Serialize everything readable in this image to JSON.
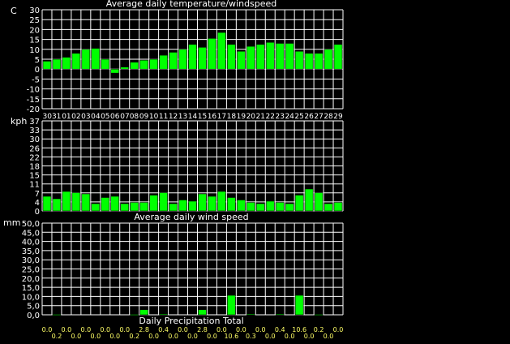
{
  "colors": {
    "background": "#000000",
    "bar_fill": "#00ff00",
    "bar_stroke": "#000000",
    "grid": "#ffffff",
    "frame": "#ffffff",
    "axis_text": "#ffffff",
    "value_text": "#ffff66",
    "date_text": "#ffff66"
  },
  "chart_data": [
    {
      "type": "bar",
      "title": "Average daily temperature/windspeed",
      "unit_label": "C",
      "ylim": [
        -20,
        30
      ],
      "y_ticks": [
        "30",
        "25",
        "20",
        "15",
        "10",
        "5",
        "0",
        "-5",
        "-10",
        "-15",
        "-20"
      ],
      "grid": true,
      "categories": [
        "30",
        "31",
        "01",
        "02",
        "03",
        "04",
        "05",
        "06",
        "07",
        "08",
        "09",
        "10",
        "11",
        "12",
        "13",
        "14",
        "15",
        "16",
        "17",
        "18",
        "19",
        "20",
        "21",
        "22",
        "23",
        "24",
        "25",
        "26",
        "27",
        "28",
        "29"
      ],
      "x_tick_labels": [
        "3031",
        "01",
        "02",
        "03",
        "04",
        "05",
        "06",
        "0708",
        "09",
        "10",
        "11",
        "12",
        "13",
        "14",
        "15",
        "16",
        "17",
        "18",
        "19",
        "20",
        "21",
        "22",
        "23",
        "24",
        "25",
        "26",
        "27",
        "28",
        "29"
      ],
      "values": [
        4,
        5,
        6,
        8,
        10,
        10.5,
        5,
        -2,
        1,
        3.5,
        4.5,
        5,
        7,
        8.5,
        10,
        12.5,
        11,
        15.5,
        18.5,
        12.5,
        9,
        11.5,
        12.5,
        13.5,
        13,
        13,
        9,
        8,
        8,
        10,
        12.5
      ]
    },
    {
      "type": "bar",
      "title": "Average daily wind speed",
      "unit_label": "kph",
      "ylim": [
        0,
        37
      ],
      "y_ticks": [
        "37",
        "33",
        "30",
        "26",
        "22",
        "18",
        "15",
        "11",
        "7",
        "4",
        "0"
      ],
      "grid": true,
      "values": [
        6,
        5,
        8,
        7.5,
        7,
        3,
        5.5,
        6,
        3,
        3.5,
        3.5,
        6.5,
        7.5,
        3,
        4.5,
        4,
        7,
        6,
        8,
        5.5,
        4.5,
        3.5,
        3,
        4,
        3.5,
        3,
        6.5,
        9,
        7.5,
        3,
        3.5
      ]
    },
    {
      "type": "bar",
      "title": "Daily Precipitation Total",
      "unit_label": "mm",
      "ylim": [
        0,
        50
      ],
      "y_ticks": [
        "50,0",
        "45,0",
        "40,0",
        "35,0",
        "30,0",
        "25,0",
        "20,0",
        "15,0",
        "10,0",
        "5,0",
        "0,0"
      ],
      "grid": true,
      "values": [
        0,
        0.2,
        0,
        0,
        0,
        0,
        0,
        0,
        0,
        0.2,
        2.8,
        0,
        0.4,
        0,
        0,
        0,
        2.8,
        0,
        0,
        10.6,
        0,
        0.3,
        0,
        0,
        0.4,
        0,
        10.6,
        0,
        0.2,
        0,
        0
      ],
      "value_labels": [
        "0.0",
        "0.2",
        "0.0",
        "0.0",
        "0.0",
        "0.0",
        "0.0",
        "0.0",
        "0.0",
        "0.2",
        "2.8",
        "0.0",
        "0.4",
        "0.0",
        "0.0",
        "0.0",
        "2.8",
        "0.0",
        "0.0",
        "10.6",
        "0.0",
        "0.3",
        "0.0",
        "0.0",
        "0.4",
        "0.0",
        "10.6",
        "0.0",
        "0.2",
        "0.0",
        "0.0"
      ]
    }
  ]
}
